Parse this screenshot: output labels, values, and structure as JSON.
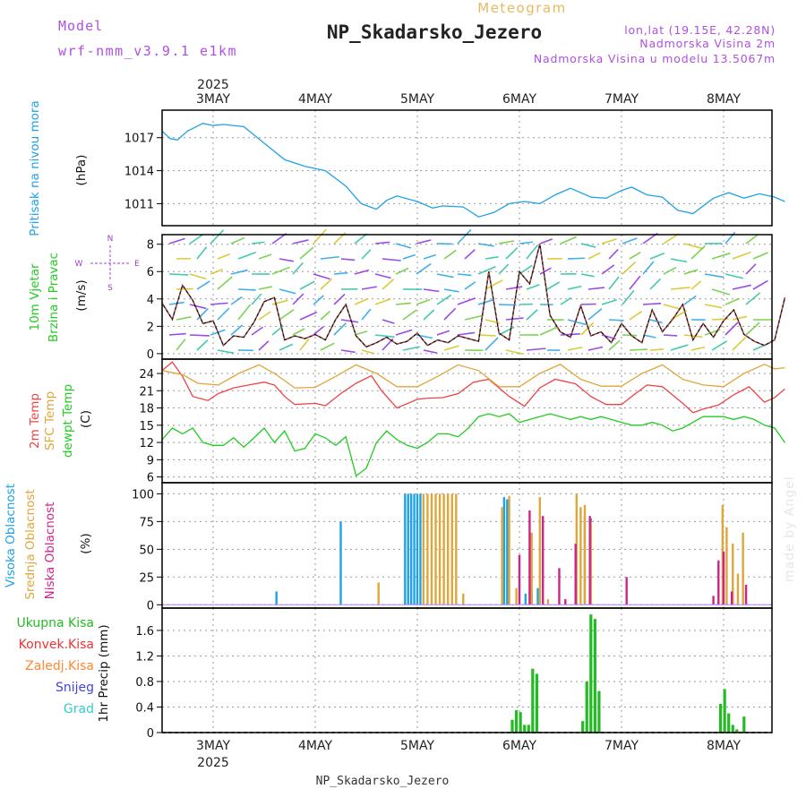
{
  "header": {
    "meteogram_label": "Meteogram",
    "model_label": "Model",
    "model_name": "wrf-nmm_v3.9.1 e1km",
    "station_title": "NP_Skadarsko_Jezero",
    "coords": "lon,lat (19.15E, 42.28N)",
    "elevation": "Nadmorska Visina 2m",
    "model_elevation": "Nadmorska Visina u modelu 13.5067m",
    "footer_station": "NP_Skadarsko_Jezero",
    "credit": "made by Angel",
    "year": "2025"
  },
  "colors": {
    "pressure": "#1fa2e6",
    "wind_label": "#22cc22",
    "wind_axis_label": "#a040d0",
    "t2m": "#ee4444",
    "sfc": "#dfa63a",
    "dewpt": "#22cc22",
    "high_cloud": "#1fa2e6",
    "mid_cloud": "#dfa63a",
    "low_cloud": "#d0238a",
    "total_precip": "#22bb22",
    "conv_precip": "#ee3333",
    "strat_precip": "#ff8833",
    "snow": "#4444dd",
    "graupel": "#33cccc",
    "purple_text": "#b050e0",
    "title_gold": "#e8b860"
  },
  "chart_data": [
    {
      "type": "line",
      "panel": "pressure",
      "ylabel": "Pritisak na nivou mora",
      "unit": "(hPa)",
      "yticks": [
        1017,
        1014,
        1011
      ],
      "ylim": [
        1009,
        1019.5
      ],
      "x_day_ticks": [
        "3MAY",
        "4MAY",
        "5MAY",
        "6MAY",
        "7MAY",
        "8MAY"
      ],
      "xlim_days": [
        0,
        6.1
      ],
      "series": [
        {
          "color_key": "pressure",
          "x": [
            0,
            0.08,
            0.15,
            0.25,
            0.4,
            0.5,
            0.6,
            0.8,
            1.0,
            1.2,
            1.4,
            1.6,
            1.8,
            1.95,
            2.1,
            2.2,
            2.3,
            2.5,
            2.65,
            2.75,
            2.95,
            3.1,
            3.25,
            3.4,
            3.55,
            3.7,
            3.85,
            4.0,
            4.2,
            4.35,
            4.5,
            4.6,
            4.75,
            4.9,
            5.05,
            5.2,
            5.4,
            5.55,
            5.7,
            5.85,
            6.0,
            6.1
          ],
          "y": [
            1017.6,
            1016.9,
            1016.8,
            1017.6,
            1018.3,
            1018.1,
            1018.2,
            1018.0,
            1016.5,
            1015.0,
            1014.4,
            1014.0,
            1012.6,
            1011.0,
            1010.5,
            1011.3,
            1011.7,
            1011.2,
            1010.6,
            1010.8,
            1010.7,
            1009.8,
            1010.2,
            1011.0,
            1011.2,
            1011.0,
            1011.8,
            1012.4,
            1011.6,
            1011.5,
            1012.2,
            1012.5,
            1011.8,
            1011.6,
            1010.4,
            1010.1,
            1011.5,
            1012.0,
            1011.5,
            1011.9,
            1011.6,
            1011.2
          ]
        }
      ]
    },
    {
      "type": "line",
      "panel": "wind",
      "ylabel_1": "10m Vjetar",
      "ylabel_2": "Brzina i Pravac",
      "unit": "(m/s)",
      "compass": {
        "n": "N",
        "s": "S",
        "w": "W",
        "e": "E"
      },
      "yticks": [
        0,
        2,
        4,
        6,
        8
      ],
      "ylim": [
        -0.4,
        8.7
      ],
      "series": [
        {
          "color_key": "wind_speed_black",
          "x": [
            0,
            0.1,
            0.2,
            0.3,
            0.4,
            0.5,
            0.6,
            0.7,
            0.8,
            0.9,
            1.0,
            1.1,
            1.2,
            1.3,
            1.4,
            1.5,
            1.6,
            1.7,
            1.8,
            1.9,
            2.0,
            2.1,
            2.2,
            2.3,
            2.4,
            2.5,
            2.6,
            2.7,
            2.8,
            2.9,
            3.0,
            3.1,
            3.2,
            3.3,
            3.4,
            3.5,
            3.6,
            3.7,
            3.8,
            3.9,
            4.0,
            4.1,
            4.2,
            4.3,
            4.4,
            4.5,
            4.6,
            4.7,
            4.8,
            4.9,
            5.0,
            5.1,
            5.2,
            5.3,
            5.4,
            5.5,
            5.6,
            5.7,
            5.8,
            5.9,
            6.0,
            6.1
          ],
          "y": [
            3.7,
            2.5,
            5.0,
            3.9,
            2.2,
            2.4,
            0.6,
            1.3,
            1.2,
            2.3,
            3.8,
            4.1,
            1.0,
            1.3,
            1.1,
            1.4,
            1.0,
            2.5,
            3.6,
            1.3,
            0.5,
            0.8,
            1.2,
            0.7,
            0.9,
            1.5,
            0.6,
            1.0,
            0.8,
            1.3,
            1.1,
            0.9,
            6.0,
            1.5,
            1.0,
            6.0,
            5.1,
            8.0,
            2.8,
            1.6,
            1.2,
            3.5,
            1.3,
            1.6,
            0.8,
            2.2,
            1.3,
            0.8,
            3.2,
            1.6,
            2.5,
            3.6,
            1.0,
            2.2,
            1.2,
            2.4,
            3.2,
            1.4,
            0.9,
            0.6,
            1.0,
            4.1
          ]
        }
      ]
    },
    {
      "type": "line",
      "panel": "temperature",
      "ylabel_t2m": "2m Temp",
      "ylabel_sfc": "SFC Temp",
      "ylabel_dew": "dewpt Temp",
      "unit": "(C)",
      "yticks": [
        6,
        9,
        12,
        15,
        18,
        21,
        24
      ],
      "ylim": [
        5,
        26.5
      ],
      "series": [
        {
          "color_key": "t2m",
          "x": [
            0,
            0.1,
            0.2,
            0.3,
            0.45,
            0.55,
            0.7,
            0.85,
            1.0,
            1.1,
            1.2,
            1.3,
            1.5,
            1.6,
            1.75,
            1.9,
            2.05,
            2.15,
            2.3,
            2.5,
            2.6,
            2.75,
            2.9,
            3.05,
            3.2,
            3.4,
            3.55,
            3.7,
            3.85,
            4.05,
            4.2,
            4.35,
            4.5,
            4.6,
            4.75,
            4.9,
            5.1,
            5.2,
            5.3,
            5.45,
            5.6,
            5.75,
            5.9,
            6.0,
            6.1
          ],
          "y": [
            24.5,
            26.0,
            23.5,
            20.0,
            19.3,
            20.5,
            21.5,
            22.0,
            22.5,
            22.0,
            20.0,
            18.6,
            18.8,
            18.4,
            20.5,
            22.3,
            23.6,
            21.0,
            18.0,
            19.5,
            19.7,
            19.8,
            20.5,
            22.5,
            23.0,
            20.0,
            18.3,
            21.5,
            23.0,
            22.2,
            20.0,
            18.6,
            18.6,
            20.0,
            22.0,
            21.7,
            18.8,
            17.2,
            17.8,
            18.5,
            20.3,
            21.7,
            19.0,
            19.8,
            21.3
          ]
        },
        {
          "color_key": "sfc",
          "x": [
            0,
            0.2,
            0.35,
            0.55,
            0.75,
            0.95,
            1.1,
            1.3,
            1.5,
            1.7,
            1.9,
            2.1,
            2.3,
            2.5,
            2.7,
            2.9,
            3.1,
            3.3,
            3.5,
            3.7,
            3.9,
            4.1,
            4.3,
            4.5,
            4.7,
            4.9,
            5.1,
            5.3,
            5.5,
            5.7,
            5.9,
            6.0,
            6.1
          ],
          "y": [
            24.5,
            23.8,
            22.3,
            22.0,
            24.0,
            25.5,
            24.0,
            21.5,
            21.6,
            23.5,
            25.5,
            24.0,
            21.7,
            21.7,
            23.5,
            25.5,
            24.5,
            21.7,
            21.7,
            24.0,
            25.6,
            23.0,
            21.8,
            21.8,
            24.0,
            25.5,
            23.0,
            22.0,
            21.7,
            24.0,
            25.6,
            24.8,
            25.0
          ]
        },
        {
          "color_key": "dewpt",
          "x": [
            0,
            0.1,
            0.2,
            0.3,
            0.4,
            0.5,
            0.6,
            0.7,
            0.8,
            0.9,
            1.0,
            1.1,
            1.2,
            1.3,
            1.4,
            1.5,
            1.6,
            1.7,
            1.8,
            1.9,
            2.0,
            2.1,
            2.2,
            2.3,
            2.4,
            2.5,
            2.6,
            2.7,
            2.8,
            2.9,
            3.0,
            3.1,
            3.2,
            3.3,
            3.4,
            3.5,
            3.6,
            3.7,
            3.8,
            3.9,
            4.0,
            4.1,
            4.2,
            4.3,
            4.4,
            4.5,
            4.6,
            4.7,
            4.8,
            4.9,
            5.0,
            5.1,
            5.2,
            5.3,
            5.4,
            5.5,
            5.6,
            5.7,
            5.8,
            5.9,
            6.0,
            6.1
          ],
          "y": [
            12.5,
            14.5,
            13.5,
            14.5,
            12.0,
            11.5,
            11.5,
            12.8,
            11.2,
            12.8,
            14.5,
            12.0,
            14.0,
            10.5,
            11.0,
            13.5,
            12.8,
            11.5,
            13.0,
            6.2,
            7.5,
            12.0,
            14.0,
            12.5,
            11.5,
            11.0,
            12.0,
            13.5,
            13.5,
            13.0,
            14.5,
            16.5,
            17.0,
            16.5,
            17.0,
            15.5,
            16.0,
            16.5,
            17.0,
            16.5,
            16.0,
            16.5,
            16.0,
            16.5,
            16.0,
            15.5,
            15.0,
            15.0,
            15.5,
            15.0,
            14.0,
            14.5,
            15.5,
            16.5,
            16.5,
            16.5,
            16.0,
            16.5,
            16.0,
            15.0,
            14.5,
            12.0
          ]
        }
      ]
    },
    {
      "type": "bar",
      "panel": "clouds",
      "ylabel_high": "Visoka Oblacnost",
      "ylabel_mid": "Srednja Oblacnost",
      "ylabel_low": "Niska Oblacnost",
      "unit": "(%)",
      "yticks": [
        0,
        25,
        50,
        75,
        100
      ],
      "ylim": [
        -3,
        110
      ],
      "series": [
        {
          "name": "Visoka Oblacnost",
          "color_key": "high_cloud",
          "x": [
            1.12,
            1.75,
            2.38,
            2.41,
            2.44,
            2.47,
            2.5,
            2.53,
            3.35,
            3.38,
            3.56,
            3.62,
            3.68,
            4.14,
            4.2
          ],
          "values": [
            12,
            75,
            100,
            100,
            100,
            100,
            100,
            100,
            97,
            95,
            10,
            12,
            15,
            80,
            78
          ]
        },
        {
          "name": "Srednja Oblacnost",
          "color_key": "mid_cloud",
          "x": [
            2.12,
            2.56,
            2.6,
            2.64,
            2.68,
            2.72,
            2.76,
            2.8,
            2.84,
            2.88,
            2.95,
            3.33,
            3.4,
            3.47,
            3.62,
            3.7,
            3.78,
            4.06,
            4.1,
            4.14,
            4.2,
            5.45,
            5.49,
            5.53,
            5.59,
            5.64,
            5.69
          ],
          "values": [
            20,
            100,
            100,
            100,
            100,
            100,
            100,
            100,
            100,
            100,
            10,
            88,
            98,
            15,
            65,
            97,
            5,
            100,
            88,
            90,
            75,
            35,
            90,
            70,
            55,
            28,
            65
          ]
        },
        {
          "name": "Niska Oblacnost",
          "color_key": "low_cloud",
          "x": [
            3.5,
            3.6,
            3.73,
            3.89,
            3.95,
            4.05,
            4.19,
            4.55,
            5.4,
            5.45,
            5.5,
            5.58,
            5.72
          ],
          "values": [
            45,
            85,
            80,
            33,
            5,
            55,
            80,
            25,
            8,
            40,
            48,
            12,
            18
          ]
        }
      ]
    },
    {
      "type": "bar",
      "panel": "precipitation",
      "ylabel": "1hr Precip (mm)",
      "legend": [
        "Ukupna Kisa",
        "Konvek.Kisa",
        "Zaledj.Kisa",
        "Snijeg",
        "Grad"
      ],
      "yticks": [
        0,
        0.4,
        0.8,
        1.2,
        1.6
      ],
      "ylim": [
        0,
        1.95
      ],
      "series": [
        {
          "name": "Ukupna Kisa",
          "color_key": "total_precip",
          "x": [
            3.43,
            3.47,
            3.51,
            3.55,
            3.59,
            3.63,
            3.67,
            4.12,
            4.16,
            4.2,
            4.24,
            4.28,
            5.47,
            5.51,
            5.55,
            5.59,
            5.63,
            5.7
          ],
          "values": [
            0.2,
            0.35,
            0.32,
            0.12,
            0.12,
            1.0,
            0.92,
            0.18,
            0.8,
            1.85,
            1.78,
            0.65,
            0.45,
            0.68,
            0.3,
            0.12,
            0.05,
            0.25
          ]
        }
      ]
    }
  ]
}
